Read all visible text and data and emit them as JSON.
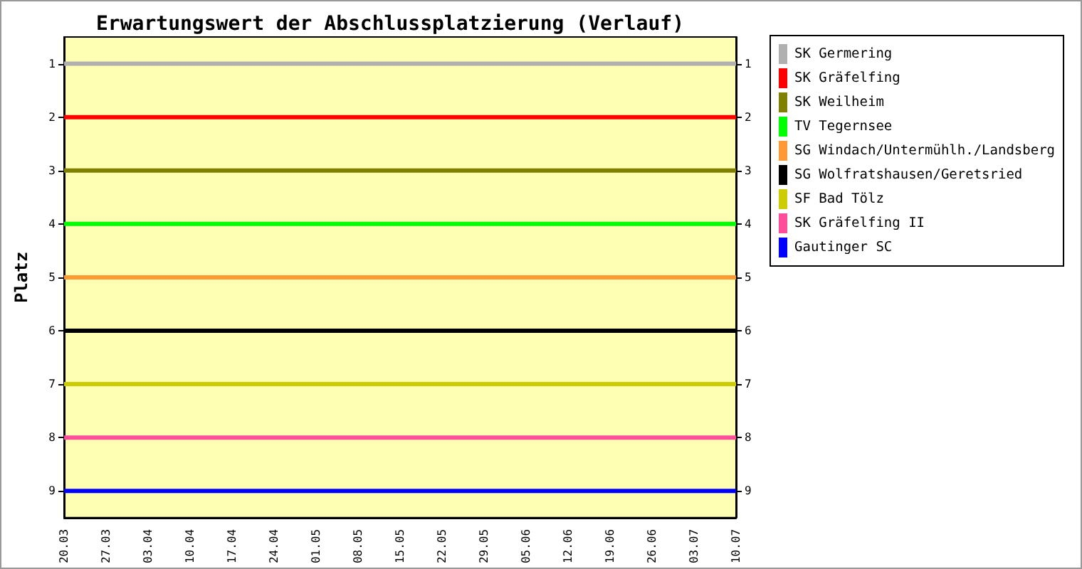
{
  "chart_data": {
    "type": "line",
    "title": "Erwartungswert der Abschlussplatzierung (Verlauf)",
    "ylabel": "Platz",
    "categories": [
      "20.03",
      "27.03",
      "03.04",
      "10.04",
      "17.04",
      "24.04",
      "01.05",
      "08.05",
      "15.05",
      "22.05",
      "29.05",
      "05.06",
      "12.06",
      "19.06",
      "26.06",
      "03.07",
      "10.07"
    ],
    "series": [
      {
        "name": "SK Germering",
        "color": "#b0b0b0",
        "values": [
          1,
          1,
          1,
          1,
          1,
          1,
          1,
          1,
          1,
          1,
          1,
          1,
          1,
          1,
          1,
          1,
          1
        ]
      },
      {
        "name": "SK Gräfelfing",
        "color": "#ff0000",
        "values": [
          2,
          2,
          2,
          2,
          2,
          2,
          2,
          2,
          2,
          2,
          2,
          2,
          2,
          2,
          2,
          2,
          2
        ]
      },
      {
        "name": "SK Weilheim",
        "color": "#808000",
        "values": [
          3,
          3,
          3,
          3,
          3,
          3,
          3,
          3,
          3,
          3,
          3,
          3,
          3,
          3,
          3,
          3,
          3
        ]
      },
      {
        "name": "TV Tegernsee",
        "color": "#00ff00",
        "values": [
          4,
          4,
          4,
          4,
          4,
          4,
          4,
          4,
          4,
          4,
          4,
          4,
          4,
          4,
          4,
          4,
          4
        ]
      },
      {
        "name": "SG Windach/Untermühlh./Landsberg",
        "color": "#ff9933",
        "values": [
          5,
          5,
          5,
          5,
          5,
          5,
          5,
          5,
          5,
          5,
          5,
          5,
          5,
          5,
          5,
          5,
          5
        ]
      },
      {
        "name": "SG Wolfratshausen/Geretsried",
        "color": "#000000",
        "values": [
          6,
          6,
          6,
          6,
          6,
          6,
          6,
          6,
          6,
          6,
          6,
          6,
          6,
          6,
          6,
          6,
          6
        ]
      },
      {
        "name": "SF Bad Tölz",
        "color": "#cccc00",
        "values": [
          7,
          7,
          7,
          7,
          7,
          7,
          7,
          7,
          7,
          7,
          7,
          7,
          7,
          7,
          7,
          7,
          7
        ]
      },
      {
        "name": "SK Gräfelfing II",
        "color": "#ff4c9b",
        "values": [
          8,
          8,
          8,
          8,
          8,
          8,
          8,
          8,
          8,
          8,
          8,
          8,
          8,
          8,
          8,
          8,
          8
        ]
      },
      {
        "name": "Gautinger SC",
        "color": "#0000ff",
        "values": [
          9,
          9,
          9,
          9,
          9,
          9,
          9,
          9,
          9,
          9,
          9,
          9,
          9,
          9,
          9,
          9,
          9
        ]
      }
    ],
    "ylim": [
      9.5,
      0.5
    ],
    "yticks": [
      1,
      2,
      3,
      4,
      5,
      6,
      7,
      8,
      9
    ],
    "y2lim": [
      9.5,
      0.5
    ],
    "y2ticks": [
      1,
      2,
      3,
      4,
      5,
      6,
      7,
      8,
      9
    ],
    "grid": false,
    "legend": "right",
    "marker": "none",
    "line_style": "solid"
  }
}
